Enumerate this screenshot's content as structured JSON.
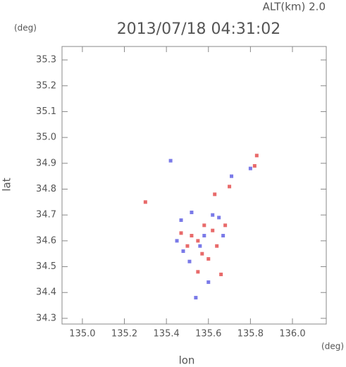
{
  "chart_data": {
    "type": "scatter",
    "title": "2013/07/18 04:31:02",
    "annotation": "ALT(km) 2.0",
    "xlabel": "lon",
    "ylabel": "lat",
    "xunit": "(deg)",
    "yunit": "(deg)",
    "xlim": [
      134.903,
      136.161
    ],
    "ylim": [
      34.278,
      35.352
    ],
    "xticks": [
      {
        "value": 135.0,
        "label": "135.0"
      },
      135.2,
      135.4,
      135.6,
      135.8,
      {
        "value": 136.0,
        "label": "136.0"
      }
    ],
    "yticks": [
      34.3,
      34.4,
      34.5,
      34.6,
      34.7,
      34.8,
      34.9,
      {
        "value": 35.0,
        "label": "35.0"
      },
      35.1,
      35.2,
      35.3
    ],
    "series": [
      {
        "color": "#e86a6a",
        "x": [
          135.83,
          135.82,
          135.63,
          135.7,
          135.52,
          135.55,
          135.5,
          135.58,
          135.62,
          135.57,
          135.6,
          135.66,
          135.55,
          135.68,
          135.3,
          135.47,
          135.64
        ],
        "values": [
          34.93,
          34.89,
          34.78,
          34.81,
          34.62,
          34.6,
          34.58,
          34.66,
          34.64,
          34.55,
          34.53,
          34.47,
          34.48,
          34.66,
          34.75,
          34.63,
          34.58
        ]
      },
      {
        "color": "#7a7ae8",
        "x": [
          135.54,
          135.52,
          135.47,
          135.45,
          135.58,
          135.62,
          135.71,
          135.51,
          135.6,
          135.56,
          135.65,
          135.42,
          135.8,
          135.48,
          135.67
        ],
        "values": [
          34.38,
          34.71,
          34.68,
          34.6,
          34.62,
          34.7,
          34.85,
          34.52,
          34.44,
          34.58,
          34.69,
          34.91,
          34.88,
          34.56,
          34.62
        ]
      }
    ]
  }
}
